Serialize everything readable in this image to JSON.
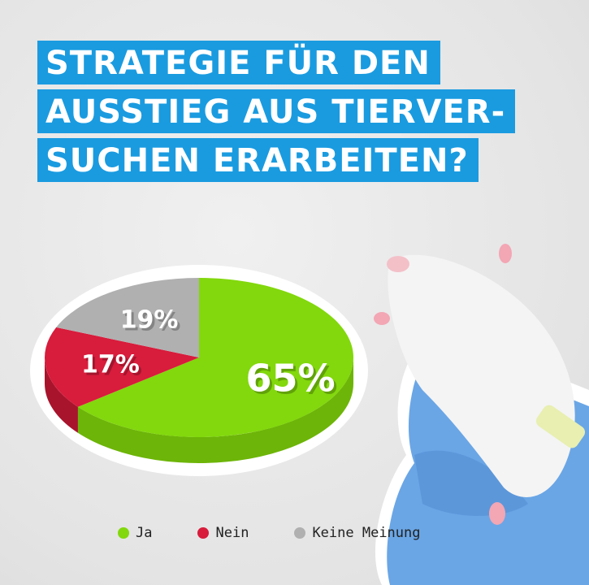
{
  "title_lines": [
    "STRATEGIE FÜR DEN",
    "AUSSTIEG AUS TIERVER-",
    "SUCHEN ERARBEITEN?"
  ],
  "colors": {
    "title_bg": "#1a9be0",
    "ja": "#82d80c",
    "nein": "#d81c3c",
    "keine": "#b0b0b0"
  },
  "chart_data": {
    "type": "pie",
    "style": "3d",
    "start": "top",
    "direction": "clockwise",
    "legend_position": "bottom",
    "slices": [
      {
        "name": "Ja",
        "value": 65,
        "label": "65%",
        "color": "#82d80c",
        "side": "#6db508"
      },
      {
        "name": "Nein",
        "value": 17,
        "label": "17%",
        "color": "#d81c3c",
        "side": "#a8142c"
      },
      {
        "name": "Keine Meinung",
        "value": 19,
        "label": "19%",
        "color": "#b0b0b0",
        "side": "#8e8e8e"
      }
    ]
  }
}
